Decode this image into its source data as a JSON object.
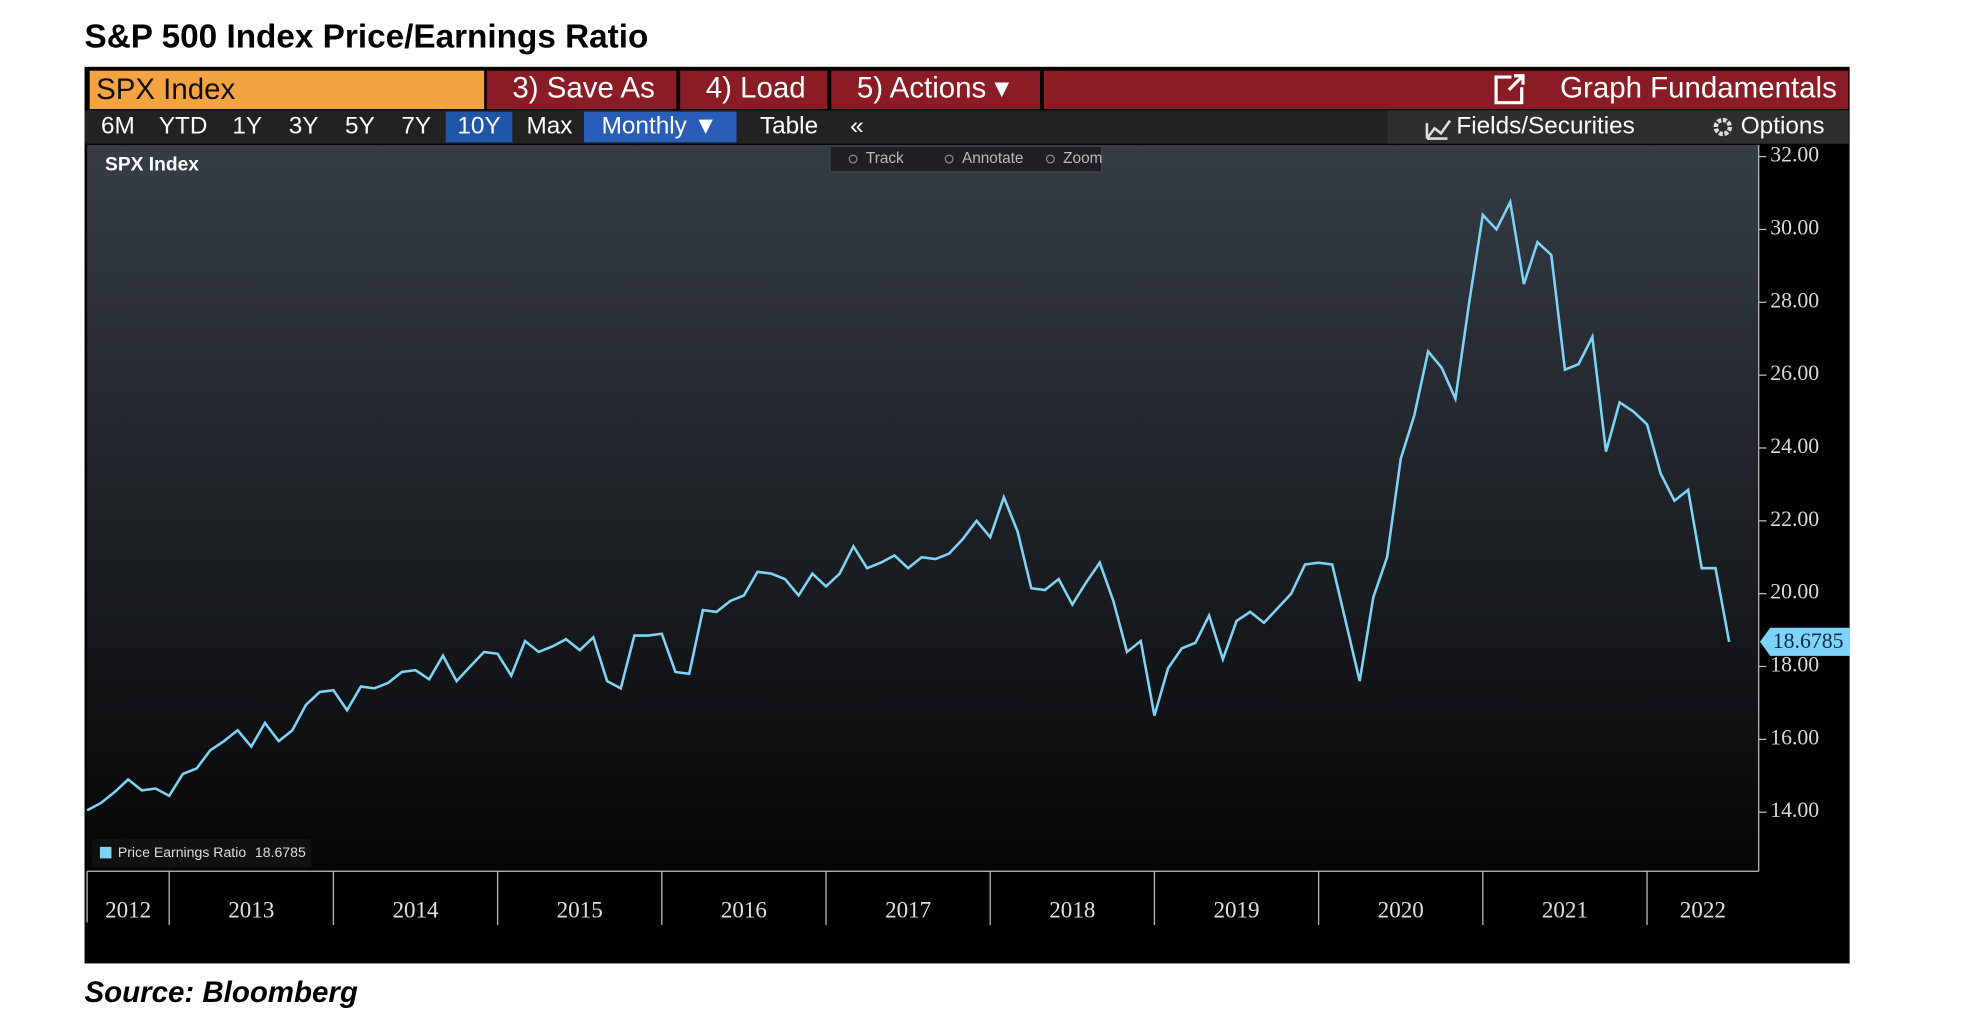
{
  "title": "S&P 500 Index Price/Earnings Ratio",
  "source": "Source: Bloomberg",
  "toolbar": {
    "security": "SPX Index",
    "buttons": [
      "3) Save As",
      "4) Load",
      "5) Actions ▾"
    ],
    "graph": "Graph Fundamentals",
    "ranges": [
      "6M",
      "YTD",
      "1Y",
      "3Y",
      "5Y",
      "7Y",
      "10Y",
      "Max"
    ],
    "selected_range": "10Y",
    "period": "Monthly ▼",
    "table": "Table",
    "collapse": "«",
    "fields": "Fields/Securities",
    "options": "Options",
    "tools": [
      "Track",
      "Annotate",
      "Zoom"
    ]
  },
  "chart_data": {
    "type": "line",
    "title": "SPX Index",
    "x": [
      2012.5,
      2012.583,
      2012.667,
      2012.75,
      2012.833,
      2012.917,
      2013,
      2013.083,
      2013.167,
      2013.25,
      2013.333,
      2013.417,
      2013.5,
      2013.583,
      2013.667,
      2013.75,
      2013.833,
      2013.917,
      2014,
      2014.083,
      2014.167,
      2014.25,
      2014.333,
      2014.417,
      2014.5,
      2014.583,
      2014.667,
      2014.75,
      2014.833,
      2014.917,
      2015,
      2015.083,
      2015.167,
      2015.25,
      2015.333,
      2015.417,
      2015.5,
      2015.583,
      2015.667,
      2015.75,
      2015.833,
      2015.917,
      2016,
      2016.083,
      2016.167,
      2016.25,
      2016.333,
      2016.417,
      2016.5,
      2016.583,
      2016.667,
      2016.75,
      2016.833,
      2016.917,
      2017,
      2017.083,
      2017.167,
      2017.25,
      2017.333,
      2017.417,
      2017.5,
      2017.583,
      2017.667,
      2017.75,
      2017.833,
      2017.917,
      2018,
      2018.083,
      2018.167,
      2018.25,
      2018.333,
      2018.417,
      2018.5,
      2018.583,
      2018.667,
      2018.75,
      2018.833,
      2018.917,
      2019,
      2019.083,
      2019.167,
      2019.25,
      2019.333,
      2019.417,
      2019.5,
      2019.583,
      2019.667,
      2019.75,
      2019.833,
      2019.917,
      2020,
      2020.083,
      2020.167,
      2020.25,
      2020.333,
      2020.417,
      2020.5,
      2020.583,
      2020.667,
      2020.75,
      2020.833,
      2020.917,
      2021,
      2021.083,
      2021.167,
      2021.25,
      2021.333,
      2021.417,
      2021.5,
      2021.583,
      2021.667,
      2021.75,
      2021.833,
      2021.917,
      2022,
      2022.083,
      2022.167,
      2022.25,
      2022.333,
      2022.417,
      2022.5
    ],
    "series": [
      {
        "name": "Price Earnings Ratio",
        "color": "#7fd3f7",
        "values": [
          14.05,
          14.25,
          14.55,
          14.9,
          14.6,
          14.65,
          14.45,
          15.05,
          15.2,
          15.7,
          15.95,
          16.25,
          15.8,
          16.45,
          15.95,
          16.25,
          16.95,
          17.3,
          17.35,
          16.8,
          17.45,
          17.4,
          17.55,
          17.85,
          17.9,
          17.65,
          18.3,
          17.6,
          18.0,
          18.4,
          18.35,
          17.75,
          18.7,
          18.4,
          18.55,
          18.75,
          18.45,
          18.8,
          17.6,
          17.4,
          18.85,
          18.85,
          18.9,
          17.85,
          17.8,
          19.55,
          19.5,
          19.8,
          19.95,
          20.6,
          20.55,
          20.4,
          19.95,
          20.55,
          20.2,
          20.55,
          21.3,
          20.7,
          20.85,
          21.05,
          20.7,
          21.0,
          20.95,
          21.1,
          21.5,
          22.0,
          21.55,
          22.65,
          21.7,
          20.15,
          20.1,
          20.4,
          19.7,
          20.3,
          20.85,
          19.8,
          18.4,
          18.7,
          16.65,
          17.95,
          18.5,
          18.65,
          19.4,
          18.2,
          19.25,
          19.5,
          19.2,
          19.6,
          20.0,
          20.8,
          20.85,
          20.8,
          19.2,
          17.6,
          19.9,
          21.0,
          23.7,
          24.9,
          26.65,
          26.2,
          25.35,
          28.0,
          30.4,
          30.0,
          30.75,
          28.5,
          29.65,
          29.3,
          26.15,
          26.3,
          27.05,
          23.9,
          25.25,
          25.0,
          24.65,
          23.3,
          22.55,
          22.85,
          20.7,
          20.7,
          18.6785
        ]
      }
    ],
    "xlim": [
      2012.5,
      2022.68
    ],
    "xticks": [
      {
        "value": 2012,
        "label": "2012"
      },
      {
        "value": 2013,
        "label": "2013"
      },
      {
        "value": 2014,
        "label": "2014"
      },
      {
        "value": 2015,
        "label": "2015"
      },
      {
        "value": 2016,
        "label": "2016"
      },
      {
        "value": 2017,
        "label": "2017"
      },
      {
        "value": 2018,
        "label": "2018"
      },
      {
        "value": 2019,
        "label": "2019"
      },
      {
        "value": 2020,
        "label": "2020"
      },
      {
        "value": 2021,
        "label": "2021"
      },
      {
        "value": 2022,
        "label": "2022"
      }
    ],
    "ylim": [
      12.38,
      32.32
    ],
    "yticks": [
      {
        "value": 14,
        "label": "14.00"
      },
      {
        "value": 16,
        "label": "16.00"
      },
      {
        "value": 18,
        "label": "18.00"
      },
      {
        "value": 20,
        "label": "20.00"
      },
      {
        "value": 22,
        "label": "22.00"
      },
      {
        "value": 24,
        "label": "24.00"
      },
      {
        "value": 26,
        "label": "26.00"
      },
      {
        "value": 28,
        "label": "28.00"
      },
      {
        "value": 30,
        "label": "30.00"
      },
      {
        "value": 32,
        "label": "32.00"
      }
    ],
    "y_axis_side": "right",
    "grid": false,
    "legend": "lower left"
  }
}
